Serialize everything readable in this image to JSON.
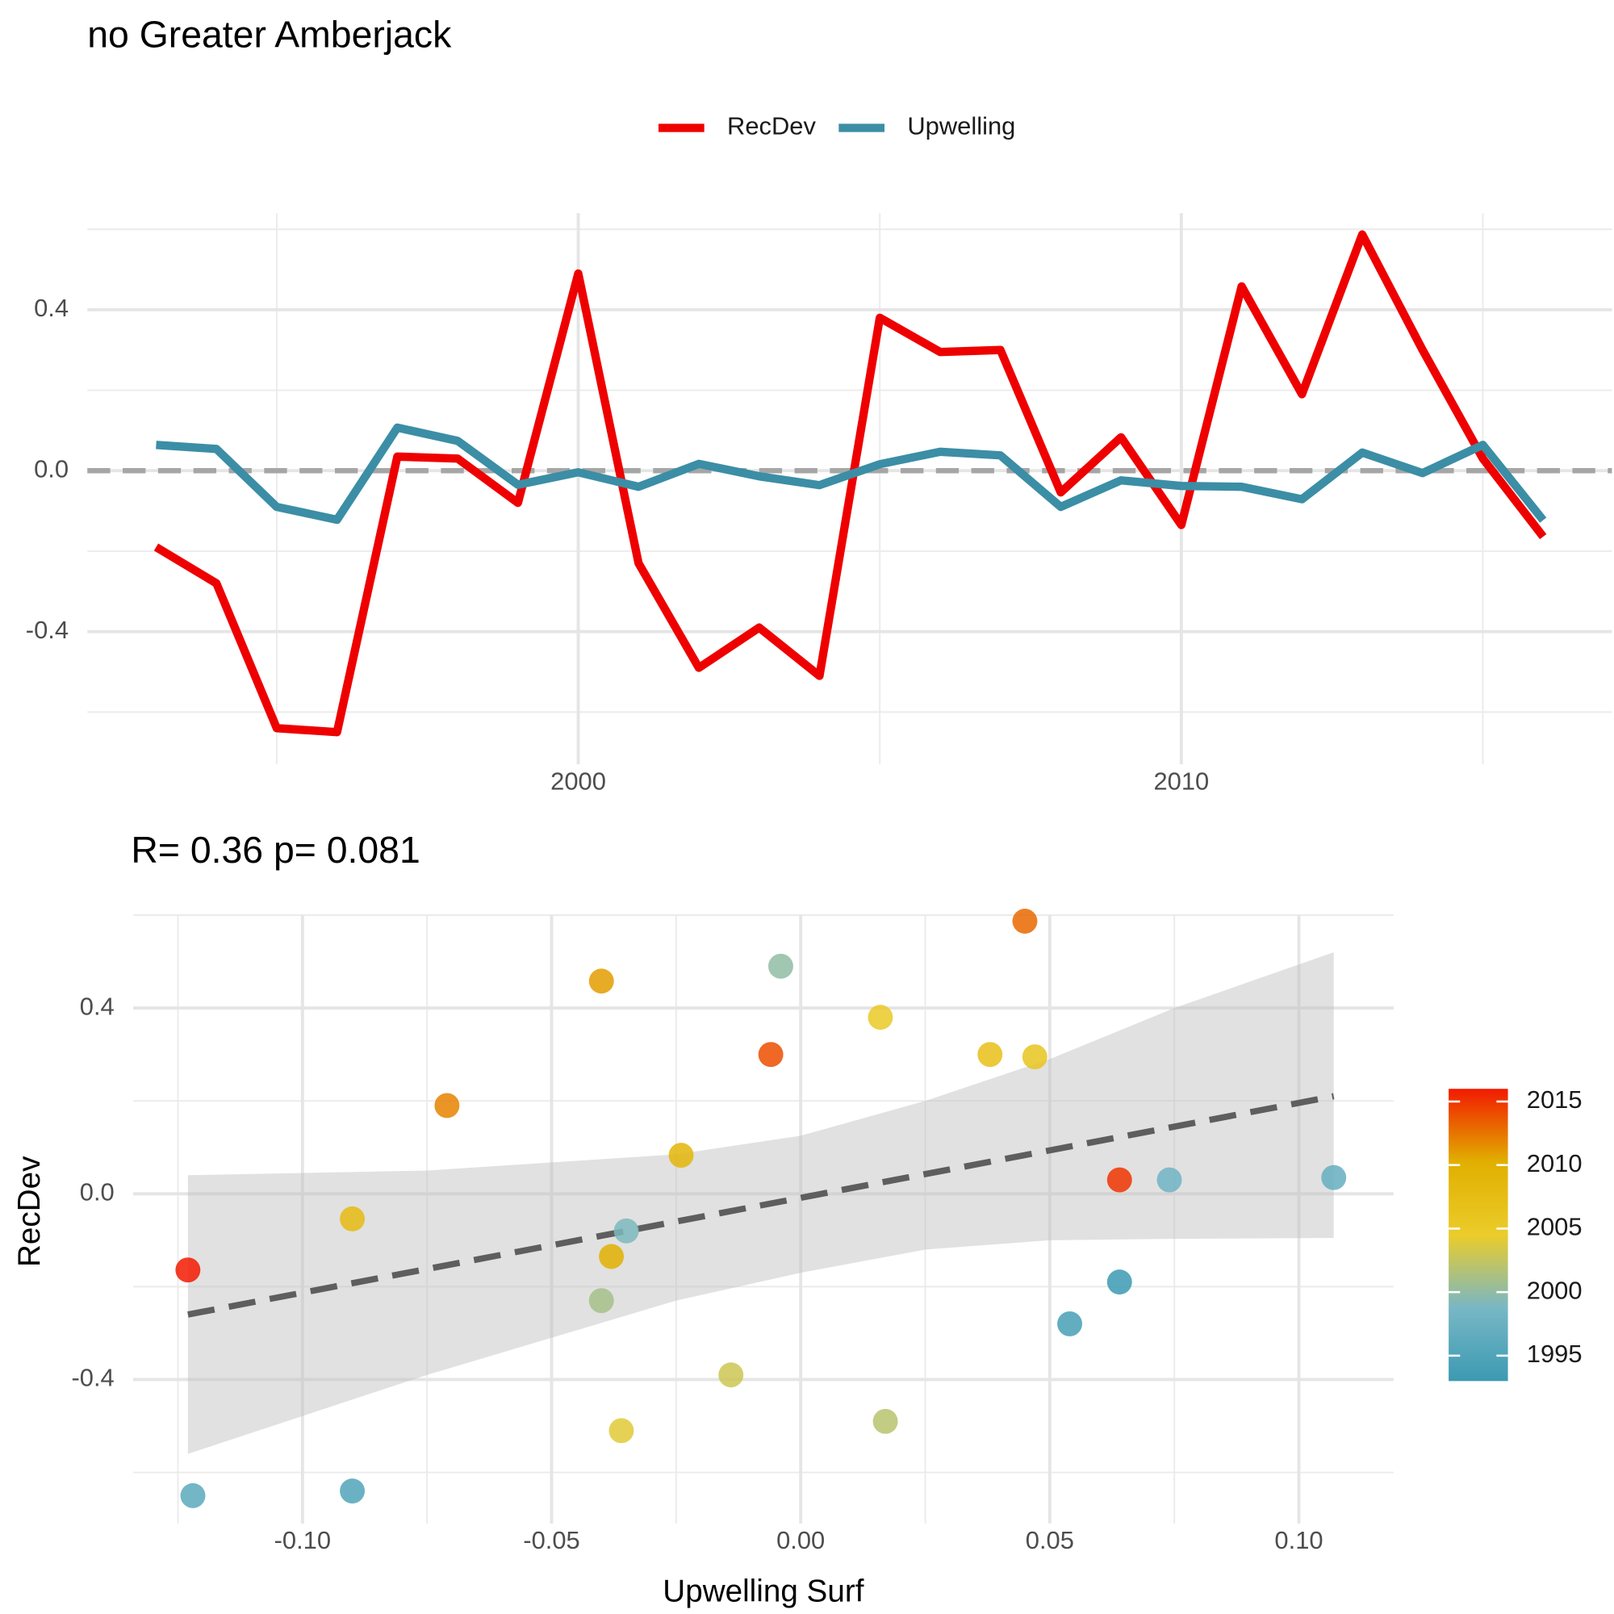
{
  "chart_data": [
    {
      "type": "line",
      "title": "no Greater Amberjack",
      "x": [
        1993,
        1994,
        1995,
        1996,
        1997,
        1998,
        1999,
        2000,
        2001,
        2002,
        2003,
        2004,
        2005,
        2006,
        2007,
        2008,
        2009,
        2010,
        2011,
        2012,
        2013,
        2014,
        2015,
        2016
      ],
      "series": [
        {
          "name": "RecDev",
          "color": "#ee0000",
          "values": [
            -0.19,
            -0.28,
            -0.64,
            -0.65,
            0.035,
            0.03,
            -0.08,
            0.49,
            -0.23,
            -0.49,
            -0.39,
            -0.51,
            0.38,
            0.295,
            0.3,
            -0.054,
            0.083,
            -0.135,
            0.458,
            0.19,
            0.587,
            0.3,
            0.03,
            -0.164
          ]
        },
        {
          "name": "Upwelling",
          "color": "#3b8ea5",
          "values": [
            0.064,
            0.054,
            -0.09,
            -0.122,
            0.107,
            0.074,
            -0.035,
            -0.004,
            -0.04,
            0.017,
            -0.014,
            -0.036,
            0.016,
            0.047,
            0.038,
            -0.09,
            -0.024,
            -0.038,
            -0.04,
            -0.071,
            0.045,
            -0.006,
            0.064,
            -0.123
          ]
        }
      ],
      "xlim": [
        1991.86,
        2017.14
      ],
      "xticks": [
        2000,
        2010
      ],
      "minor_xticks": [
        1995,
        2005,
        2015
      ],
      "ylim": [
        -0.73,
        0.64
      ],
      "yticks": [
        -0.4,
        {
          "value": 0,
          "label": "0.0"
        },
        0.4
      ],
      "minor_yticks": [
        -0.6,
        -0.2,
        0.2,
        0.6
      ],
      "hline": 0,
      "grid": true,
      "legend": "top"
    },
    {
      "type": "scatter",
      "title": "R= 0.36  p= 0.081",
      "x_label": "Upwelling Surf",
      "y_label": "RecDev",
      "x": [
        0.064,
        0.054,
        -0.09,
        -0.122,
        0.107,
        0.074,
        -0.035,
        -0.004,
        -0.04,
        0.017,
        -0.014,
        -0.036,
        0.016,
        0.047,
        0.038,
        -0.09,
        -0.024,
        -0.038,
        -0.04,
        -0.071,
        0.045,
        -0.006,
        0.064,
        -0.123
      ],
      "y": [
        -0.19,
        -0.28,
        -0.64,
        -0.65,
        0.035,
        0.03,
        -0.08,
        0.49,
        -0.23,
        -0.49,
        -0.39,
        -0.51,
        0.38,
        0.295,
        0.3,
        -0.054,
        0.083,
        -0.135,
        0.458,
        0.19,
        0.587,
        0.3,
        0.03,
        -0.164
      ],
      "color_values": [
        1993,
        1994,
        1995,
        1996,
        1997,
        1998,
        1999,
        2000,
        2001,
        2002,
        2003,
        2004,
        2005,
        2006,
        2007,
        2008,
        2009,
        2010,
        2011,
        2012,
        2013,
        2014,
        2015,
        2016
      ],
      "colorscale": [
        "#3B9AB2",
        "#78B7C5",
        "#EBCC2A",
        "#E1AF00",
        "#F21A00"
      ],
      "colorlim": [
        1993,
        2016
      ],
      "colorticks": [
        1995,
        2000,
        2005,
        2010,
        2015
      ],
      "fit": {
        "x": [
          -0.123,
          0.107
        ],
        "y": [
          -0.26,
          0.21
        ]
      },
      "band": {
        "x": [
          -0.123,
          -0.075,
          -0.025,
          0,
          0.025,
          0.05,
          0.075,
          0.107
        ],
        "upper": [
          0.04,
          0.05,
          0.085,
          0.125,
          0.2,
          0.29,
          0.4,
          0.52
        ],
        "lower": [
          -0.56,
          -0.39,
          -0.23,
          -0.17,
          -0.12,
          -0.1,
          -0.097,
          -0.095
        ]
      },
      "xlim": [
        -0.134,
        0.119
      ],
      "xticks": [
        {
          "value": -0.1,
          "label": "-0.10"
        },
        -0.05,
        {
          "value": 0,
          "label": "0.00"
        },
        0.05,
        {
          "value": 0.1,
          "label": "0.10"
        }
      ],
      "minor_xticks": [
        -0.125,
        -0.075,
        -0.025,
        0.025,
        0.075
      ],
      "ylim": [
        -0.71,
        0.6
      ],
      "yticks": [
        -0.4,
        {
          "value": 0,
          "label": "0.0"
        },
        0.4
      ],
      "minor_yticks": [
        -0.6,
        -0.2,
        0.2,
        0.6
      ],
      "grid": true,
      "legend": "right"
    }
  ]
}
